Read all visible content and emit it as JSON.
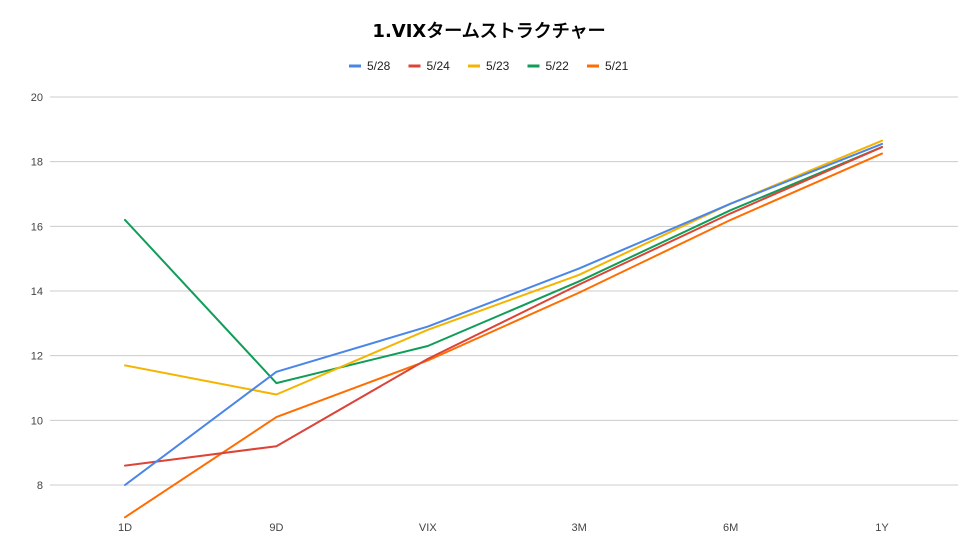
{
  "chart_data": {
    "type": "line",
    "title": "1.VIXタームストラクチャー",
    "xlabel": "",
    "ylabel": "",
    "categories": [
      "1D",
      "9D",
      "VIX",
      "3M",
      "6M",
      "1Y"
    ],
    "ylim": [
      7,
      21
    ],
    "yticks": [
      8,
      10,
      12,
      14,
      16,
      18,
      20
    ],
    "grid": true,
    "legend_position": "top",
    "series": [
      {
        "name": "5/28",
        "color": "#4a86e8",
        "values": [
          8.0,
          11.5,
          12.9,
          14.7,
          16.7,
          18.55
        ]
      },
      {
        "name": "5/24",
        "color": "#db4437",
        "values": [
          8.6,
          9.2,
          11.9,
          14.2,
          16.4,
          18.45
        ]
      },
      {
        "name": "5/23",
        "color": "#f4b400",
        "values": [
          11.7,
          10.8,
          12.8,
          14.5,
          16.7,
          18.65
        ]
      },
      {
        "name": "5/22",
        "color": "#0f9d58",
        "values": [
          16.2,
          11.15,
          12.3,
          14.3,
          16.5,
          18.45
        ]
      },
      {
        "name": "5/21",
        "color": "#ff6d01",
        "values": [
          7.0,
          10.1,
          11.85,
          13.95,
          16.2,
          18.25
        ]
      }
    ]
  }
}
